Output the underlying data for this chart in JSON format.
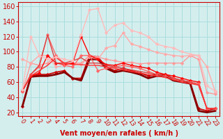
{
  "x": [
    0,
    1,
    2,
    3,
    4,
    5,
    6,
    7,
    8,
    9,
    10,
    11,
    12,
    13,
    14,
    15,
    16,
    17,
    18,
    19,
    20,
    21,
    22,
    23
  ],
  "lines": [
    {
      "y": [
        28,
        68,
        70,
        70,
        73,
        75,
        65,
        65,
        95,
        93,
        80,
        75,
        78,
        75,
        72,
        68,
        70,
        70,
        65,
        62,
        60,
        25,
        22,
        25
      ],
      "color": "#cc0000",
      "lw": 1.2,
      "marker": "D",
      "ms": 2.5
    },
    {
      "y": [
        28,
        67,
        68,
        68,
        70,
        73,
        65,
        62,
        90,
        90,
        78,
        73,
        75,
        73,
        70,
        65,
        68,
        68,
        62,
        60,
        58,
        22,
        20,
        22
      ],
      "color": "#880000",
      "lw": 2.0,
      "marker": null,
      "ms": 0
    },
    {
      "y": [
        47,
        85,
        82,
        85,
        95,
        85,
        85,
        85,
        95,
        93,
        90,
        88,
        86,
        86,
        84,
        85,
        85,
        85,
        85,
        85,
        95,
        90,
        46,
        44
      ],
      "color": "#ff9999",
      "lw": 1.0,
      "marker": "D",
      "ms": 2.5
    },
    {
      "y": [
        90,
        85,
        95,
        95,
        80,
        82,
        85,
        83,
        93,
        90,
        105,
        108,
        125,
        110,
        107,
        103,
        99,
        97,
        95,
        94,
        95,
        95,
        80,
        47
      ],
      "color": "#ffaaaa",
      "lw": 1.0,
      "marker": "D",
      "ms": 2.5
    },
    {
      "y": [
        48,
        68,
        72,
        95,
        85,
        83,
        85,
        120,
        95,
        90,
        83,
        82,
        85,
        82,
        80,
        78,
        73,
        70,
        68,
        65,
        62,
        60,
        25,
        25
      ],
      "color": "#ff0000",
      "lw": 1.0,
      "marker": "D",
      "ms": 2.5
    },
    {
      "y": [
        48,
        70,
        80,
        122,
        95,
        82,
        80,
        95,
        95,
        75,
        78,
        80,
        82,
        80,
        78,
        74,
        70,
        68,
        65,
        62,
        60,
        58,
        25,
        25
      ],
      "color": "#ff6666",
      "lw": 1.0,
      "marker": "D",
      "ms": 2.5
    },
    {
      "y": [
        48,
        70,
        82,
        122,
        85,
        85,
        88,
        92,
        85,
        85,
        82,
        80,
        78,
        76,
        74,
        72,
        70,
        68,
        65,
        62,
        60,
        56,
        25,
        25
      ],
      "color": "#dd4444",
      "lw": 1.0,
      "marker": null,
      "ms": 0
    },
    {
      "y": [
        48,
        68,
        75,
        82,
        92,
        85,
        83,
        83,
        82,
        82,
        80,
        78,
        76,
        74,
        72,
        70,
        68,
        66,
        63,
        60,
        58,
        56,
        25,
        25
      ],
      "color": "#ff3333",
      "lw": 1.0,
      "marker": null,
      "ms": 0
    },
    {
      "y": [
        50,
        120,
        95,
        90,
        93,
        90,
        88,
        122,
        155,
        157,
        125,
        135,
        138,
        128,
        125,
        120,
        110,
        107,
        105,
        100,
        97,
        95,
        55,
        48
      ],
      "color": "#ffbbbb",
      "lw": 1.0,
      "marker": "D",
      "ms": 2.5
    }
  ],
  "ylabel_values": [
    20,
    40,
    60,
    80,
    100,
    120,
    140,
    160
  ],
  "xlim": [
    -0.5,
    23.5
  ],
  "ylim": [
    15,
    165
  ],
  "xlabel": "Vent moyen/en rafales ( km/h )",
  "bg_color": "#d4eeee",
  "grid_color": "#aadddd",
  "tick_color": "#cc0000",
  "label_color": "#cc0000",
  "axis_color": "#cc0000",
  "tick_fontsize": 6,
  "xlabel_fontsize": 7,
  "tick_rotation": -55
}
